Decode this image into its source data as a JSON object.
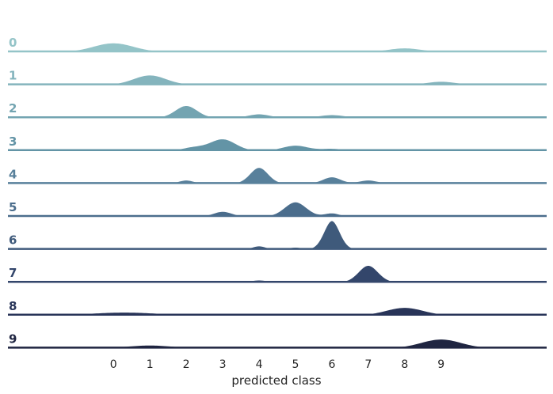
{
  "chart_data": {
    "type": "ridgeline",
    "xlabel": "predicted class",
    "x_ticks": [
      0,
      1,
      2,
      3,
      4,
      5,
      6,
      7,
      8,
      9
    ],
    "xlim": [
      -2.9,
      11.9
    ],
    "grid": false,
    "legend": "none",
    "series": [
      {
        "name": "0",
        "color": "#94c4c8",
        "peaks": [
          {
            "center": 0.0,
            "height": 0.55,
            "width": 0.55
          },
          {
            "center": 8.0,
            "height": 0.23,
            "width": 0.45
          }
        ]
      },
      {
        "name": "1",
        "color": "#84b4bd",
        "peaks": [
          {
            "center": 1.0,
            "height": 0.6,
            "width": 0.45
          },
          {
            "center": 9.0,
            "height": 0.2,
            "width": 0.4
          }
        ]
      },
      {
        "name": "2",
        "color": "#73a4b1",
        "peaks": [
          {
            "center": 0.0,
            "height": 0.1,
            "width": 0.2
          },
          {
            "center": 2.0,
            "height": 0.75,
            "width": 0.3
          },
          {
            "center": 4.0,
            "height": 0.22,
            "width": 0.3
          },
          {
            "center": 6.0,
            "height": 0.17,
            "width": 0.35
          }
        ]
      },
      {
        "name": "3",
        "color": "#6394a6",
        "peaks": [
          {
            "center": 2.2,
            "height": 0.2,
            "width": 0.3
          },
          {
            "center": 3.0,
            "height": 0.72,
            "width": 0.35
          },
          {
            "center": 5.0,
            "height": 0.32,
            "width": 0.35
          },
          {
            "center": 6.0,
            "height": 0.12,
            "width": 0.3
          },
          {
            "center": 9.0,
            "height": 0.1,
            "width": 0.25
          }
        ]
      },
      {
        "name": "4",
        "color": "#58809b",
        "peaks": [
          {
            "center": 2.0,
            "height": 0.2,
            "width": 0.2
          },
          {
            "center": 4.0,
            "height": 1.0,
            "width": 0.25
          },
          {
            "center": 6.0,
            "height": 0.4,
            "width": 0.25
          },
          {
            "center": 7.0,
            "height": 0.2,
            "width": 0.25
          }
        ]
      },
      {
        "name": "5",
        "color": "#4b6d8c",
        "peaks": [
          {
            "center": 3.0,
            "height": 0.3,
            "width": 0.25
          },
          {
            "center": 5.0,
            "height": 0.9,
            "width": 0.3
          },
          {
            "center": 6.0,
            "height": 0.2,
            "width": 0.2
          },
          {
            "center": 8.0,
            "height": 0.05,
            "width": 0.2
          }
        ]
      },
      {
        "name": "6",
        "color": "#3f5a7b",
        "peaks": [
          {
            "center": 3.0,
            "height": 0.08,
            "width": 0.15
          },
          {
            "center": 4.0,
            "height": 0.2,
            "width": 0.18
          },
          {
            "center": 5.0,
            "height": 0.12,
            "width": 0.18
          },
          {
            "center": 6.0,
            "height": 1.8,
            "width": 0.22
          }
        ]
      },
      {
        "name": "7",
        "color": "#33466b",
        "peaks": [
          {
            "center": 4.0,
            "height": 0.12,
            "width": 0.25
          },
          {
            "center": 5.0,
            "height": 0.08,
            "width": 0.25
          },
          {
            "center": 7.0,
            "height": 1.05,
            "width": 0.27
          }
        ]
      },
      {
        "name": "8",
        "color": "#283458",
        "peaks": [
          {
            "center": 0.3,
            "height": 0.17,
            "width": 0.9
          },
          {
            "center": 8.0,
            "height": 0.47,
            "width": 0.5
          }
        ]
      },
      {
        "name": "9",
        "color": "#1f2541",
        "peaks": [
          {
            "center": 1.0,
            "height": 0.17,
            "width": 0.6
          },
          {
            "center": 9.0,
            "height": 0.55,
            "width": 0.55
          }
        ]
      }
    ]
  }
}
